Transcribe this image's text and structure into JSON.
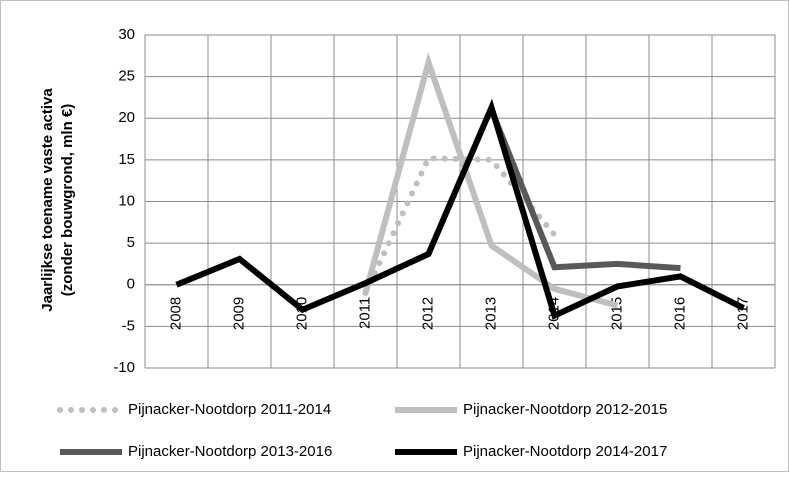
{
  "chart_data": {
    "type": "line",
    "y_label": [
      "Jaarlijkse  toename vaste activa",
      "(zonder bouwgrond,  mln €)"
    ],
    "categories": [
      "2008",
      "2009",
      "2010",
      "2011",
      "2012",
      "2013",
      "2014",
      "2015",
      "2016",
      "2017"
    ],
    "series": [
      {
        "name": "Pijnacker-Nootdorp 2011-2014",
        "color": "#bfbfbf",
        "dash": "dotted",
        "values": [
          null,
          null,
          null,
          -1,
          15.2,
          15,
          6,
          null,
          null,
          null
        ]
      },
      {
        "name": "Pijnacker-Nootdorp 2012-2015",
        "color": "#bfbfbf",
        "dash": "solid",
        "values": [
          null,
          null,
          null,
          -1,
          26.7,
          4.7,
          -0.5,
          -2.5,
          null,
          null
        ]
      },
      {
        "name": "Pijnacker-Nootdorp 2013-2016",
        "color": "#595959",
        "dash": "solid",
        "values": [
          null,
          null,
          null,
          null,
          null,
          21,
          2.1,
          2.5,
          2,
          null
        ]
      },
      {
        "name": "Pijnacker-Nootdorp 2014-2017",
        "color": "#000000",
        "dash": "solid",
        "values": [
          0,
          3.1,
          -3,
          0.2,
          3.7,
          21.3,
          -3.7,
          -0.2,
          1,
          -2.8
        ]
      }
    ],
    "ylim": [
      -10,
      30
    ],
    "yticks": [
      -10,
      -5,
      0,
      5,
      10,
      15,
      20,
      25,
      30
    ],
    "grid": true,
    "legend": "bottom"
  }
}
